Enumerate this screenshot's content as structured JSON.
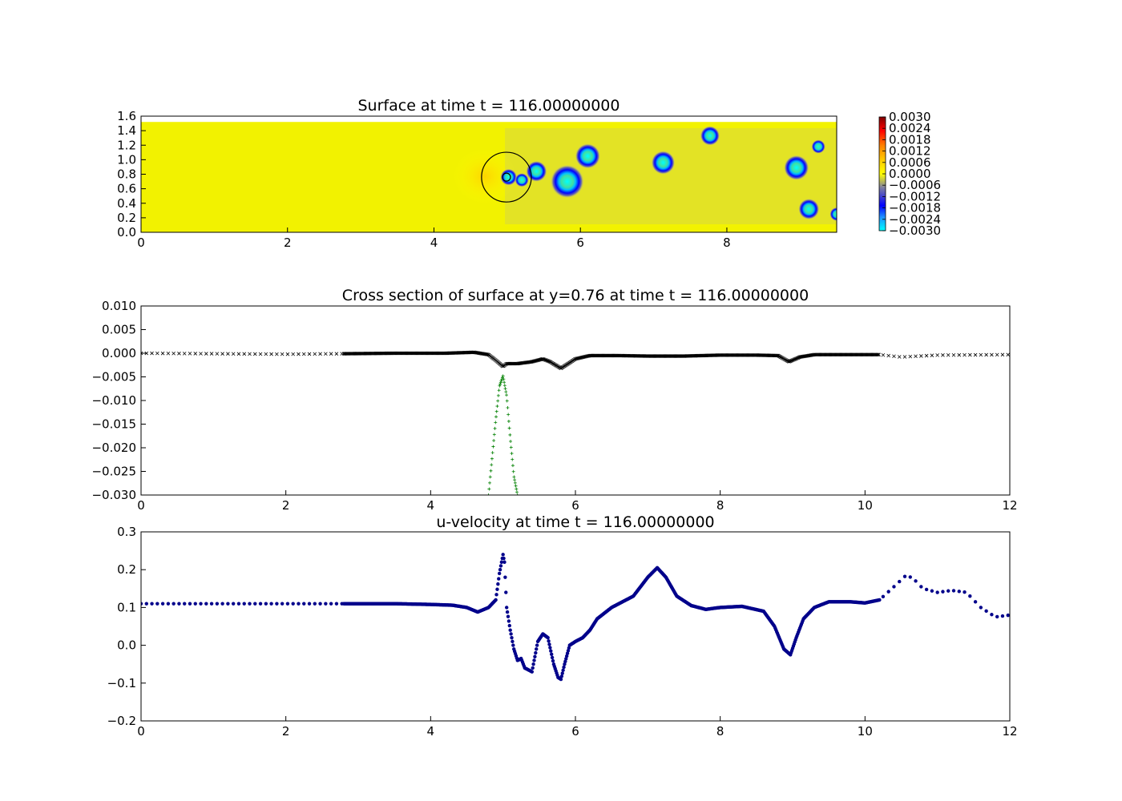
{
  "chart_data": [
    {
      "type": "heatmap",
      "title": "Surface at time t =   116.00000000",
      "xlim": [
        0,
        9.5
      ],
      "ylim": [
        0,
        1.6
      ],
      "domain_ymax": 1.52,
      "xticks": [
        "0",
        "2",
        "4",
        "6",
        "8"
      ],
      "yticks": [
        "0.0",
        "0.2",
        "0.4",
        "0.6",
        "0.8",
        "1.0",
        "1.2",
        "1.4",
        "1.6"
      ],
      "colorbar": {
        "min": -0.003,
        "max": 0.003,
        "ticks": [
          "0.0030",
          "0.0024",
          "0.0018",
          "0.0012",
          "0.0006",
          "0.0000",
          "−0.0006",
          "−0.0012",
          "−0.0018",
          "−0.0024",
          "−0.0030"
        ]
      },
      "background_value": 0.0001,
      "vortices": [
        {
          "x": 5.02,
          "y": 0.76,
          "r": 0.12,
          "value": -0.0028
        },
        {
          "x": 5.2,
          "y": 0.72,
          "r": 0.1,
          "value": -0.0026
        },
        {
          "x": 5.4,
          "y": 0.84,
          "r": 0.15,
          "value": -0.0028
        },
        {
          "x": 5.82,
          "y": 0.7,
          "r": 0.24,
          "value": -0.003
        },
        {
          "x": 6.1,
          "y": 1.05,
          "r": 0.18,
          "value": -0.003
        },
        {
          "x": 7.13,
          "y": 0.96,
          "r": 0.17,
          "value": -0.0028
        },
        {
          "x": 7.77,
          "y": 1.33,
          "r": 0.14,
          "value": -0.0028
        },
        {
          "x": 8.95,
          "y": 0.89,
          "r": 0.18,
          "value": -0.0028
        },
        {
          "x": 9.12,
          "y": 0.32,
          "r": 0.15,
          "value": -0.0028
        },
        {
          "x": 9.25,
          "y": 1.18,
          "r": 0.1,
          "value": -0.002
        },
        {
          "x": 9.5,
          "y": 0.25,
          "r": 0.1,
          "value": -0.0018
        }
      ],
      "body_circle": {
        "x": 4.99,
        "y": 0.76,
        "r": 0.34
      },
      "marker": {
        "x": 4.99,
        "y": 0.76
      }
    },
    {
      "type": "scatter",
      "title": "Cross section of surface at y=0.76 at time t =   116.00000000",
      "xlim": [
        0,
        12
      ],
      "ylim": [
        -0.03,
        0.01
      ],
      "xticks": [
        "0",
        "2",
        "4",
        "6",
        "8",
        "10",
        "12"
      ],
      "yticks": [
        "0.010",
        "0.005",
        "0.000",
        "−0.005",
        "−0.010",
        "−0.015",
        "−0.020",
        "−0.025",
        "−0.030"
      ],
      "series": [
        {
          "marker": "x",
          "color": "#000000",
          "x": [
            0,
            1,
            2,
            2.8,
            3.5,
            4.2,
            4.6,
            4.8,
            4.9,
            5.0,
            5.05,
            5.2,
            5.4,
            5.55,
            5.65,
            5.8,
            6.0,
            6.2,
            6.6,
            7.0,
            7.5,
            8.0,
            8.5,
            8.8,
            8.95,
            9.1,
            9.3,
            9.8,
            10.2,
            10.5,
            11.0,
            12.0
          ],
          "y": [
            0.0,
            -0.0001,
            -0.0002,
            -0.0001,
            0.0,
            0.0,
            0.0002,
            -0.0003,
            -0.0015,
            -0.0028,
            -0.0022,
            -0.0022,
            -0.0018,
            -0.0012,
            -0.0018,
            -0.0032,
            -0.0012,
            -0.0005,
            -0.0005,
            -0.0006,
            -0.0006,
            -0.0004,
            -0.0004,
            -0.0005,
            -0.0018,
            -0.0008,
            -0.0003,
            -0.0003,
            -0.0003,
            -0.0008,
            -0.0004,
            -0.0003
          ]
        },
        {
          "marker": "+",
          "color": "#008000",
          "x": [
            4.8,
            4.85,
            4.9,
            4.95,
            5.0,
            5.05,
            5.1,
            5.15,
            5.2
          ],
          "y": [
            -0.03,
            -0.022,
            -0.014,
            -0.007,
            -0.0048,
            -0.009,
            -0.018,
            -0.026,
            -0.03
          ]
        }
      ]
    },
    {
      "type": "scatter",
      "title": "u-velocity at time t =   116.00000000",
      "xlim": [
        0,
        12
      ],
      "ylim": [
        -0.2,
        0.3
      ],
      "xticks": [
        "0",
        "2",
        "4",
        "6",
        "8",
        "10",
        "12"
      ],
      "yticks": [
        "0.3",
        "0.2",
        "0.1",
        "0.0",
        "−0.1",
        "−0.2"
      ],
      "series": [
        {
          "marker": "o",
          "color": "#00008b",
          "x": [
            0,
            1,
            2,
            2.8,
            3.5,
            4.0,
            4.3,
            4.5,
            4.65,
            4.8,
            4.9,
            4.95,
            5.0,
            5.02,
            5.05,
            5.1,
            5.15,
            5.2,
            5.25,
            5.3,
            5.4,
            5.48,
            5.55,
            5.62,
            5.7,
            5.76,
            5.8,
            5.85,
            5.92,
            6.0,
            6.1,
            6.2,
            6.3,
            6.5,
            6.8,
            7.0,
            7.13,
            7.25,
            7.4,
            7.6,
            7.8,
            8.0,
            8.3,
            8.6,
            8.75,
            8.88,
            8.97,
            9.05,
            9.15,
            9.3,
            9.5,
            9.8,
            10.0,
            10.2,
            10.4,
            10.55,
            10.65,
            10.8,
            11.0,
            11.2,
            11.4,
            11.6,
            11.8,
            12.0
          ],
          "y": [
            0.11,
            0.11,
            0.11,
            0.11,
            0.11,
            0.108,
            0.106,
            0.1,
            0.088,
            0.1,
            0.12,
            0.19,
            0.24,
            0.22,
            0.1,
            0.04,
            -0.01,
            -0.04,
            -0.035,
            -0.06,
            -0.07,
            0.01,
            0.03,
            0.02,
            -0.05,
            -0.085,
            -0.09,
            -0.05,
            0.0,
            0.01,
            0.02,
            0.04,
            0.07,
            0.1,
            0.13,
            0.18,
            0.205,
            0.18,
            0.13,
            0.105,
            0.095,
            0.1,
            0.103,
            0.09,
            0.05,
            -0.01,
            -0.025,
            0.02,
            0.07,
            0.1,
            0.115,
            0.115,
            0.112,
            0.12,
            0.155,
            0.182,
            0.18,
            0.15,
            0.14,
            0.145,
            0.14,
            0.1,
            0.075,
            0.08
          ]
        }
      ]
    }
  ]
}
